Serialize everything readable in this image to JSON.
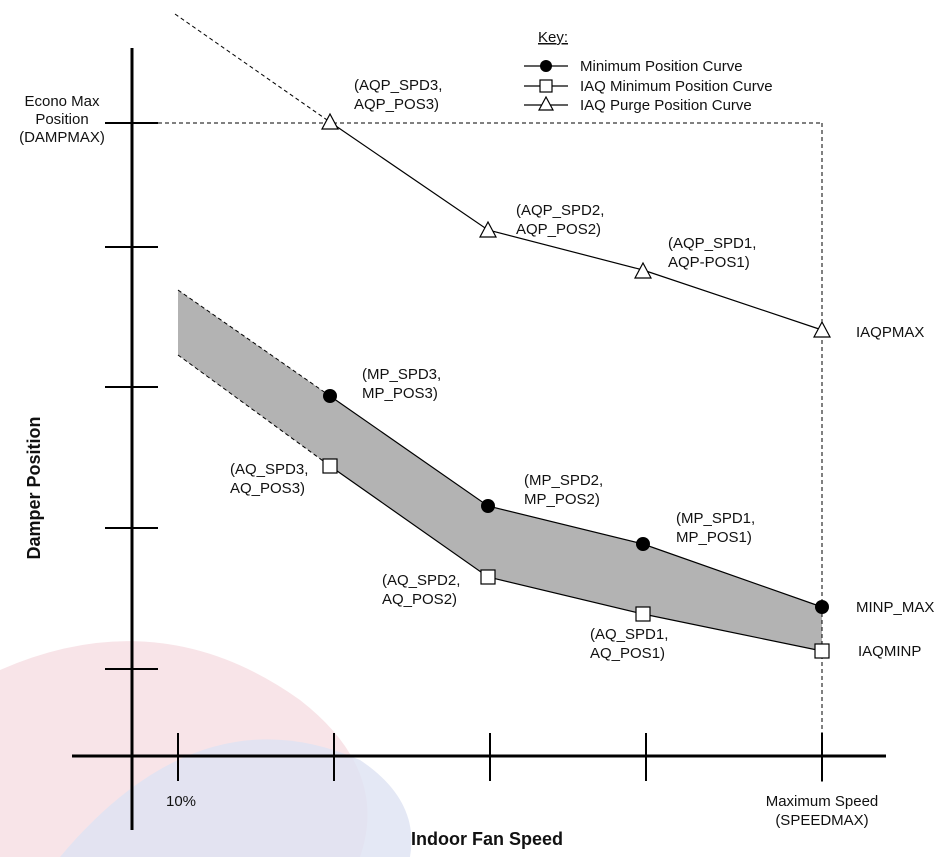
{
  "axes": {
    "x_title": "Indoor Fan Speed",
    "y_title": "Damper Position",
    "x_tick_10pct": "10%",
    "x_max_line1": "Maximum Speed",
    "x_max_line2": "(SPEEDMAX)",
    "y_econo_line1": "Econo Max",
    "y_econo_line2": "Position",
    "y_econo_line3": "(DAMPMAX)"
  },
  "key": {
    "title": "Key:",
    "entries": [
      {
        "label": "Minimum Position Curve",
        "marker": "filled-circle"
      },
      {
        "label": "IAQ Minimum Position Curve",
        "marker": "open-square"
      },
      {
        "label": "IAQ Purge Position Curve",
        "marker": "open-triangle"
      }
    ]
  },
  "points": {
    "aqp3": [
      "(AQP_SPD3,",
      "AQP_POS3)"
    ],
    "aqp2": [
      "(AQP_SPD2,",
      "AQP_POS2)"
    ],
    "aqp1": [
      "(AQP_SPD1,",
      "AQP-POS1)"
    ],
    "iaqpmax": "IAQPMAX",
    "mp3": [
      "(MP_SPD3,",
      "MP_POS3)"
    ],
    "mp2": [
      "(MP_SPD2,",
      "MP_POS2)"
    ],
    "mp1": [
      "(MP_SPD1,",
      "MP_POS1)"
    ],
    "minp_max": "MINP_MAX",
    "aq3": [
      "(AQ_SPD3,",
      "AQ_POS3)"
    ],
    "aq2": [
      "(AQ_SPD2,",
      "AQ_POS2)"
    ],
    "aq1": [
      "(AQ_SPD1,",
      "AQ_POS1)"
    ],
    "iaqminp": "IAQMINP"
  },
  "colors": {
    "band_fill": "#b3b3b3",
    "line": "#000000",
    "watermark_red": "#f3d0d6",
    "watermark_blue": "#d6dcef"
  }
}
